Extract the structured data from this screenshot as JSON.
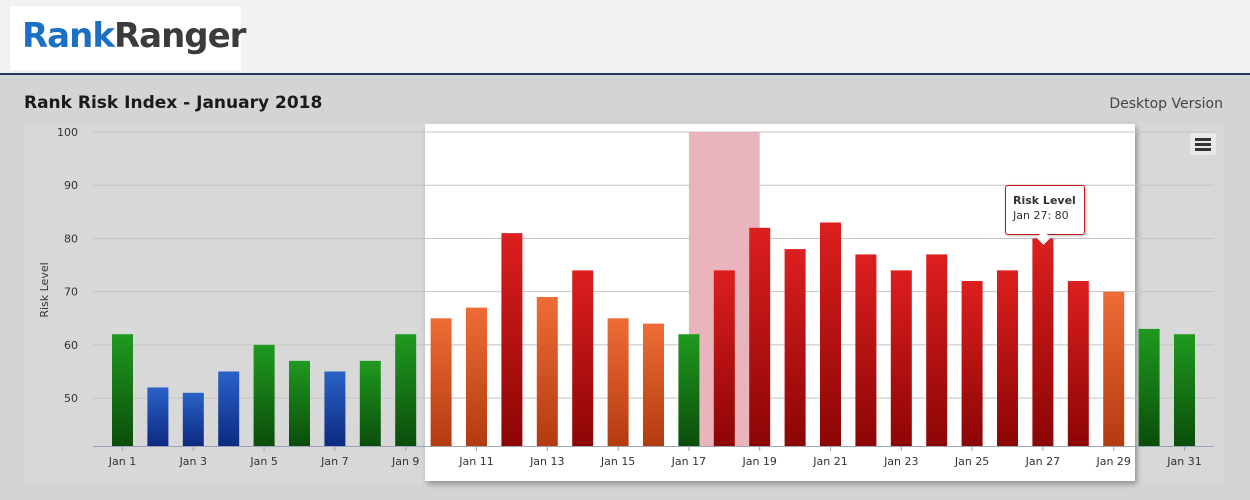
{
  "header": {
    "logo_part1": "Rank",
    "logo_part2": "Ranger",
    "title": "Rank Risk Index - January 2018",
    "version": "Desktop Version"
  },
  "colors": {
    "green": "#1e8a1e",
    "blue": "#1a4aa8",
    "orange": "#e0612a",
    "red": "#cc1a1a",
    "highlight": "#e8b0b8"
  },
  "icons": {
    "menu": "hamburger-menu-icon"
  },
  "tooltip": {
    "title": "Risk Level",
    "value": "Jan 27: 80"
  },
  "chart_data": {
    "type": "bar",
    "title": "",
    "xlabel": "",
    "ylabel": "Risk Level",
    "ylim": [
      41,
      100
    ],
    "yticks": [
      50,
      60,
      70,
      80,
      90,
      100
    ],
    "grid": true,
    "legend": "none",
    "categories": [
      "Jan 1",
      "Jan 2",
      "Jan 3",
      "Jan 4",
      "Jan 5",
      "Jan 6",
      "Jan 7",
      "Jan 8",
      "Jan 9",
      "Jan 10",
      "Jan 11",
      "Jan 12",
      "Jan 13",
      "Jan 14",
      "Jan 15",
      "Jan 16",
      "Jan 17",
      "Jan 18",
      "Jan 19",
      "Jan 20",
      "Jan 21",
      "Jan 22",
      "Jan 23",
      "Jan 24",
      "Jan 25",
      "Jan 26",
      "Jan 27",
      "Jan 28",
      "Jan 29",
      "Jan 30",
      "Jan 31"
    ],
    "tick_labels": [
      "Jan 1",
      "",
      "Jan 3",
      "",
      "Jan 5",
      "",
      "Jan 7",
      "",
      "Jan 9",
      "",
      "Jan 11",
      "",
      "Jan 13",
      "",
      "Jan 15",
      "",
      "Jan 17",
      "",
      "Jan 19",
      "",
      "Jan 21",
      "",
      "Jan 23",
      "",
      "Jan 25",
      "",
      "Jan 27",
      "",
      "Jan 29",
      "",
      "Jan 31"
    ],
    "values": [
      62,
      52,
      51,
      55,
      60,
      57,
      55,
      57,
      62,
      65,
      67,
      81,
      69,
      74,
      65,
      64,
      62,
      74,
      82,
      78,
      83,
      77,
      74,
      77,
      72,
      74,
      80,
      72,
      70,
      63,
      62
    ],
    "bar_colors": [
      "green",
      "blue",
      "blue",
      "blue",
      "green",
      "green",
      "blue",
      "green",
      "green",
      "orange",
      "orange",
      "red",
      "orange",
      "red",
      "orange",
      "orange",
      "green",
      "red",
      "red",
      "red",
      "red",
      "red",
      "red",
      "red",
      "red",
      "red",
      "red",
      "red",
      "orange",
      "green",
      "green"
    ],
    "highlight_category": "Jan 18",
    "zoom_range": [
      "Jan 10",
      "Jan 29"
    ]
  }
}
